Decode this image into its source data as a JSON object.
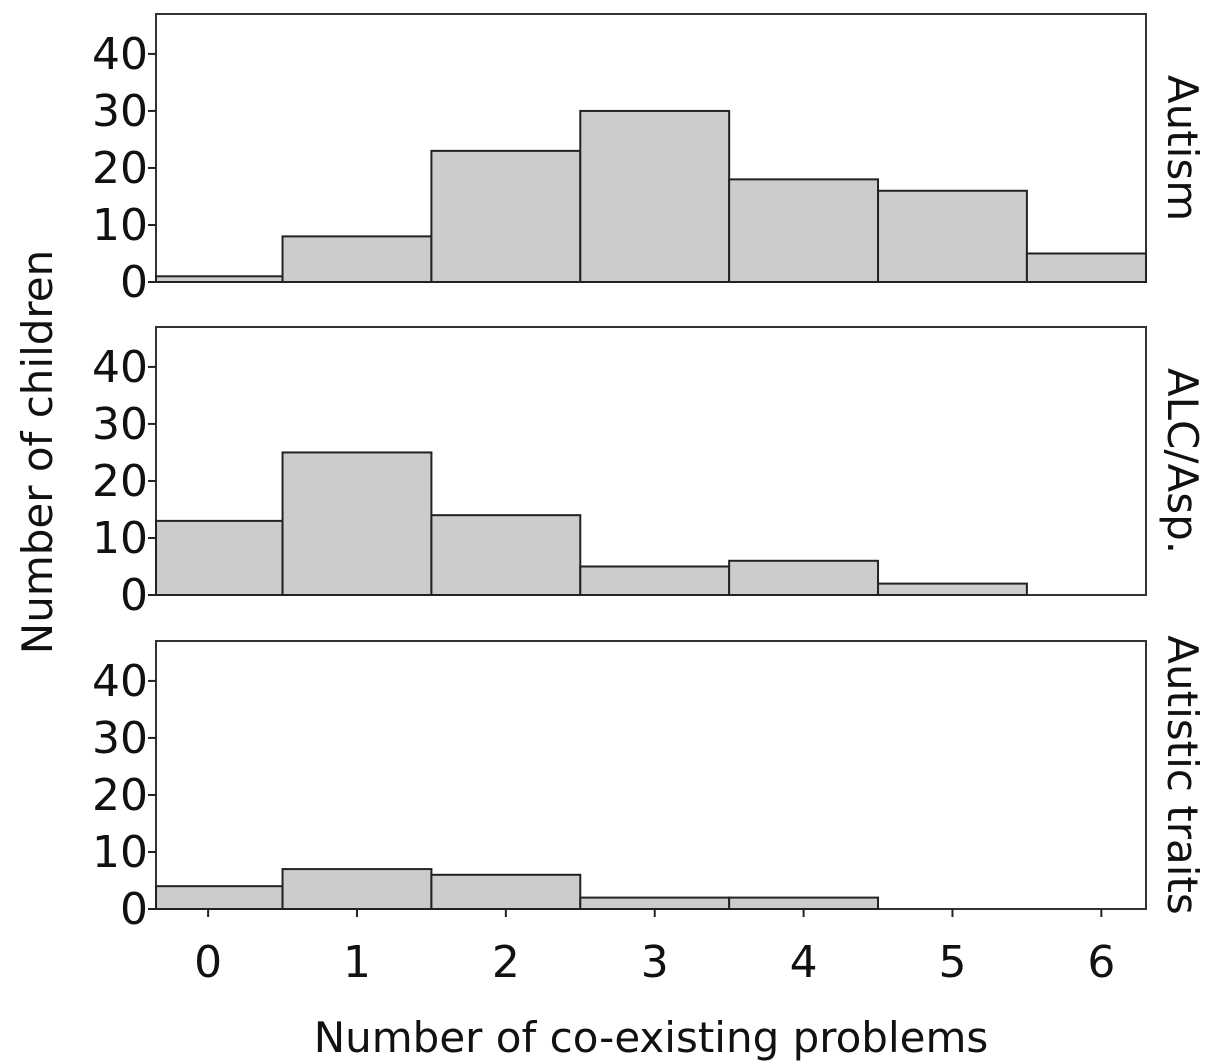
{
  "chart_data": {
    "type": "bar",
    "subtype": "histogram-faceted",
    "xlabel": "Number of co-existing problems",
    "ylabel": "Number of children",
    "x_ticks": [
      "0",
      "1",
      "2",
      "3",
      "4",
      "5",
      "6"
    ],
    "y_ticks": [
      "0",
      "10",
      "20",
      "30",
      "40"
    ],
    "xlim": [
      -0.35,
      6.3
    ],
    "ylim": [
      0,
      47
    ],
    "grid": false,
    "bar_color": "#cccccc",
    "panels": [
      {
        "label": "Autism",
        "bins": [
          {
            "x0": -0.35,
            "x1": 0.5,
            "value": 1
          },
          {
            "x0": 0.5,
            "x1": 1.5,
            "value": 8
          },
          {
            "x0": 1.5,
            "x1": 2.5,
            "value": 23
          },
          {
            "x0": 2.5,
            "x1": 3.5,
            "value": 30
          },
          {
            "x0": 3.5,
            "x1": 4.5,
            "value": 18
          },
          {
            "x0": 4.5,
            "x1": 5.5,
            "value": 16
          },
          {
            "x0": 5.5,
            "x1": 6.3,
            "value": 5
          }
        ]
      },
      {
        "label": "ALC/Asp.",
        "bins": [
          {
            "x0": -0.35,
            "x1": 0.5,
            "value": 13
          },
          {
            "x0": 0.5,
            "x1": 1.5,
            "value": 25
          },
          {
            "x0": 1.5,
            "x1": 2.5,
            "value": 14
          },
          {
            "x0": 2.5,
            "x1": 3.5,
            "value": 5
          },
          {
            "x0": 3.5,
            "x1": 4.5,
            "value": 6
          },
          {
            "x0": 4.5,
            "x1": 5.5,
            "value": 2
          }
        ]
      },
      {
        "label": "Autistic traits",
        "bins": [
          {
            "x0": -0.35,
            "x1": 0.5,
            "value": 4
          },
          {
            "x0": 0.5,
            "x1": 1.5,
            "value": 7
          },
          {
            "x0": 1.5,
            "x1": 2.5,
            "value": 6
          },
          {
            "x0": 2.5,
            "x1": 3.5,
            "value": 2
          },
          {
            "x0": 3.5,
            "x1": 4.5,
            "value": 2
          }
        ]
      }
    ]
  }
}
